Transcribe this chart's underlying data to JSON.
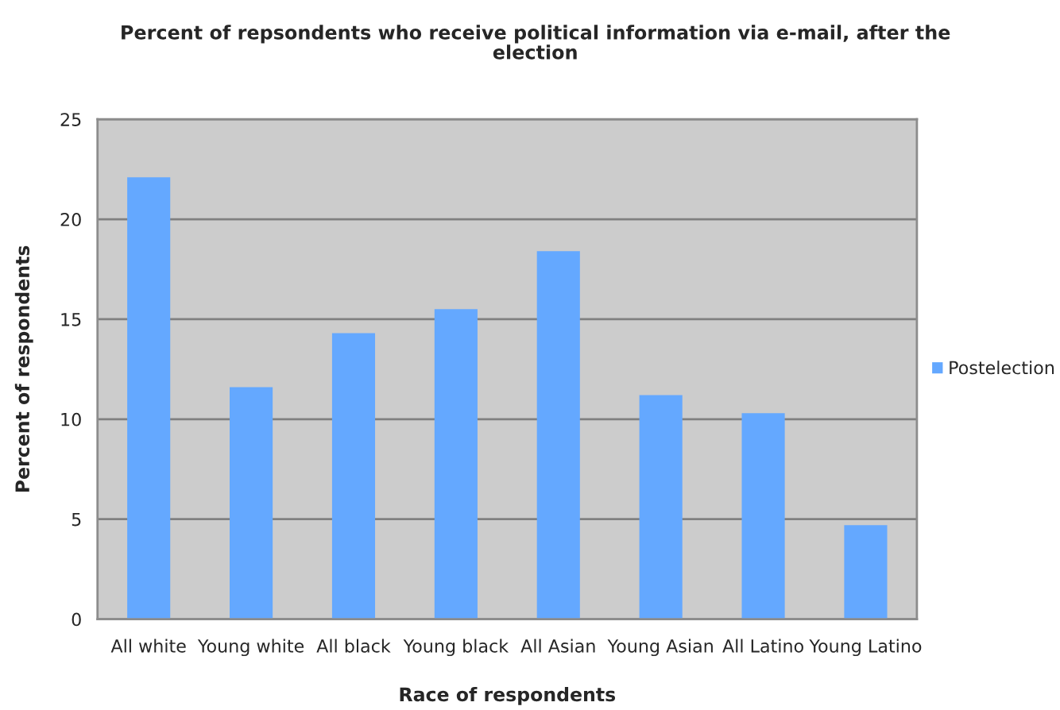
{
  "chart_data": {
    "type": "bar",
    "title": "Percent of repsondents who receive political information via e-mail, after the election",
    "xlabel": "Race of respondents",
    "ylabel": "Percent of respondents",
    "categories": [
      "All white",
      "Young white",
      "All black",
      "Young black",
      "All Asian",
      "Young Asian",
      "All Latino",
      "Young Latino"
    ],
    "series": [
      {
        "name": "Postelection",
        "color": "#64a8ff",
        "values": [
          22.1,
          11.6,
          14.3,
          15.5,
          18.4,
          11.2,
          10.3,
          4.7
        ]
      }
    ],
    "ylim": [
      0,
      25
    ],
    "yticks": [
      0,
      5,
      10,
      15,
      20,
      25
    ],
    "grid": "y",
    "legend": "right"
  }
}
